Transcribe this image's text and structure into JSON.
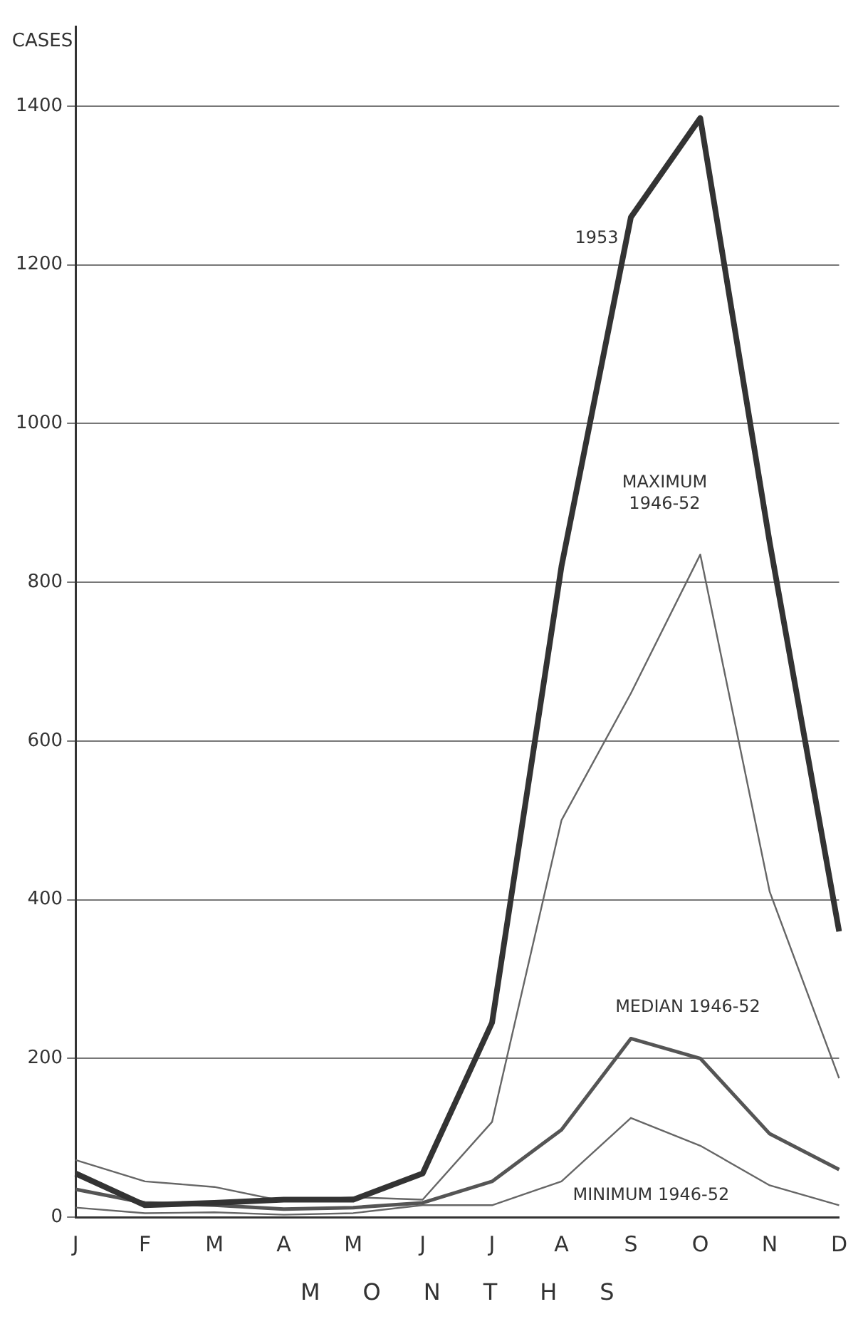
{
  "chart_data": {
    "type": "line",
    "xlabel": "MONTHS",
    "ylabel": "CASES",
    "categories": [
      "J",
      "F",
      "M",
      "A",
      "M",
      "J",
      "J",
      "A",
      "S",
      "O",
      "N",
      "D"
    ],
    "series": [
      {
        "name": "1953",
        "color": "#333333",
        "values": [
          55,
          15,
          18,
          22,
          22,
          55,
          245,
          820,
          1260,
          1385,
          850,
          360
        ]
      },
      {
        "name": "MAXIMUM 1946-52",
        "color": "#666666",
        "values": [
          72,
          45,
          38,
          20,
          25,
          22,
          120,
          500,
          660,
          835,
          410,
          175
        ]
      },
      {
        "name": "MEDIAN 1946-52",
        "color": "#555555",
        "values": [
          35,
          18,
          15,
          10,
          12,
          18,
          45,
          110,
          225,
          200,
          105,
          60
        ]
      },
      {
        "name": "MINIMUM 1946-52",
        "color": "#666666",
        "values": [
          12,
          5,
          6,
          3,
          5,
          15,
          15,
          45,
          125,
          90,
          40,
          15
        ]
      }
    ],
    "ylim": [
      0,
      1500
    ],
    "yticks": [
      0,
      200,
      400,
      600,
      800,
      1000,
      1200,
      1400
    ],
    "grid": "y",
    "legend": false,
    "marker": "none",
    "line_style": "solid"
  }
}
